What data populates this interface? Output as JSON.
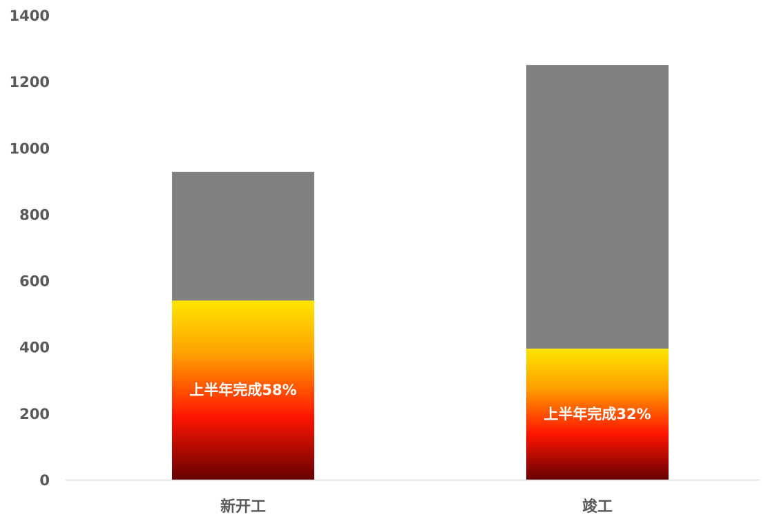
{
  "chart_data": {
    "type": "bar",
    "stacked": true,
    "title": "",
    "xlabel": "",
    "ylabel": "",
    "ylim": [
      0,
      1400
    ],
    "yticks": [
      0,
      200,
      400,
      600,
      800,
      1000,
      1200,
      1400
    ],
    "grid": false,
    "legend": "none",
    "categories": [
      "新开工",
      "竣工"
    ],
    "series": [
      {
        "values": [
          540,
          395
        ],
        "labels": [
          "上半年完成58%",
          "上半年完成32%"
        ],
        "colors": {
          "top": "#FFE600",
          "mid1": "#FFA000",
          "mid2": "#FF1500",
          "bottom": "#660000"
        }
      },
      {
        "values": [
          388,
          855
        ],
        "color": "#808080"
      }
    ],
    "colors": {
      "axis": "#D9D9D9",
      "text": "#595959",
      "label": "#FFFFFF"
    }
  }
}
